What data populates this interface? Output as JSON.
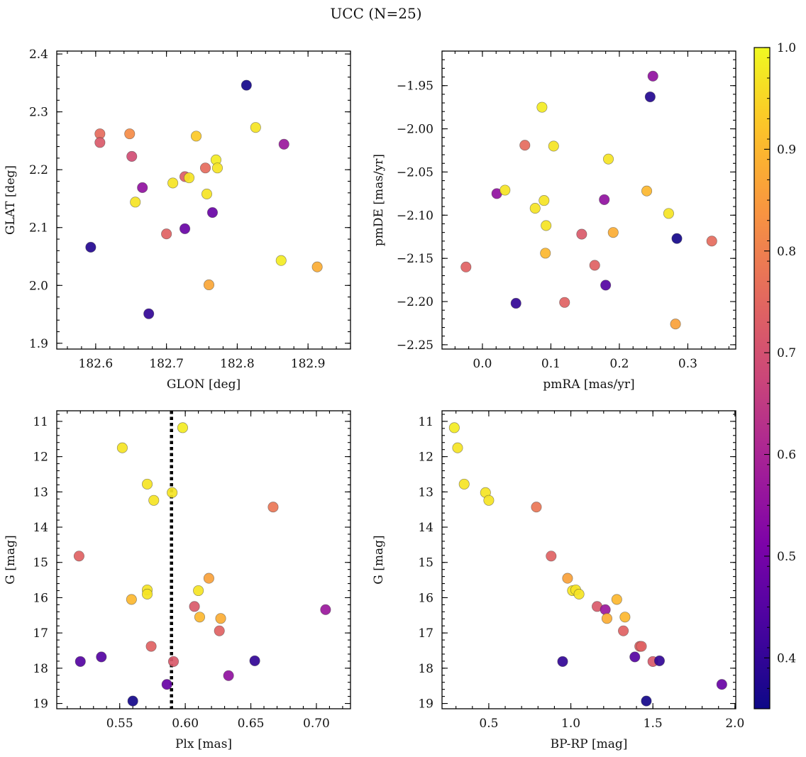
{
  "figure": {
    "title": "UCC (N=25)",
    "colorbar": {
      "min": 0.35,
      "max": 1.0,
      "ticks": [
        0.4,
        0.5,
        0.6,
        0.7,
        0.8,
        0.9,
        1.0
      ],
      "tick_labels": [
        "0.4",
        "0.5",
        "0.6",
        "0.7",
        "0.8",
        "0.9",
        "1.0"
      ],
      "colormap": "plasma"
    }
  },
  "chart_data": [
    {
      "type": "scatter",
      "id": "glon-glat",
      "xlabel": "GLON [deg]",
      "ylabel": "GLAT [deg]",
      "xlim": [
        182.545,
        182.96
      ],
      "ylim": [
        1.89,
        2.405
      ],
      "invert_y": false,
      "xticks": [
        182.6,
        182.7,
        182.8,
        182.9
      ],
      "xtick_labels": [
        "182.6",
        "182.7",
        "182.8",
        "182.9"
      ],
      "yticks": [
        1.9,
        2.0,
        2.1,
        2.2,
        2.3,
        2.4
      ],
      "ytick_labels": [
        "1.9",
        "2.0",
        "2.1",
        "2.2",
        "2.3",
        "2.4"
      ],
      "points": [
        {
          "x": 182.593,
          "y": 2.066,
          "c": 0.38
        },
        {
          "x": 182.606,
          "y": 2.262,
          "c": 0.76
        },
        {
          "x": 182.606,
          "y": 2.247,
          "c": 0.72
        },
        {
          "x": 182.648,
          "y": 2.262,
          "c": 0.82
        },
        {
          "x": 182.651,
          "y": 2.223,
          "c": 0.69
        },
        {
          "x": 182.656,
          "y": 2.144,
          "c": 0.97
        },
        {
          "x": 182.666,
          "y": 2.169,
          "c": 0.55
        },
        {
          "x": 182.675,
          "y": 1.951,
          "c": 0.4
        },
        {
          "x": 182.7,
          "y": 2.089,
          "c": 0.74
        },
        {
          "x": 182.709,
          "y": 2.177,
          "c": 0.97
        },
        {
          "x": 182.726,
          "y": 2.188,
          "c": 0.73
        },
        {
          "x": 182.726,
          "y": 2.098,
          "c": 0.48
        },
        {
          "x": 182.732,
          "y": 2.186,
          "c": 0.97
        },
        {
          "x": 182.742,
          "y": 2.258,
          "c": 0.93
        },
        {
          "x": 182.755,
          "y": 2.203,
          "c": 0.76
        },
        {
          "x": 182.757,
          "y": 2.158,
          "c": 0.97
        },
        {
          "x": 182.76,
          "y": 2.001,
          "c": 0.87
        },
        {
          "x": 182.765,
          "y": 2.126,
          "c": 0.48
        },
        {
          "x": 182.77,
          "y": 2.217,
          "c": 0.98
        },
        {
          "x": 182.772,
          "y": 2.203,
          "c": 0.97
        },
        {
          "x": 182.813,
          "y": 2.346,
          "c": 0.36
        },
        {
          "x": 182.826,
          "y": 2.273,
          "c": 0.97
        },
        {
          "x": 182.862,
          "y": 2.043,
          "c": 0.98
        },
        {
          "x": 182.866,
          "y": 2.244,
          "c": 0.57
        },
        {
          "x": 182.913,
          "y": 2.032,
          "c": 0.88
        }
      ]
    },
    {
      "type": "scatter",
      "id": "pmra-pmde",
      "xlabel": "pmRA [mas/yr]",
      "ylabel": "pmDE [mas/yr]",
      "xlim": [
        -0.059,
        0.37
      ],
      "ylim": [
        -2.255,
        -1.91
      ],
      "invert_y": false,
      "xticks": [
        0.0,
        0.1,
        0.2,
        0.3
      ],
      "xtick_labels": [
        "0.0",
        "0.1",
        "0.2",
        "0.3"
      ],
      "yticks": [
        -2.25,
        -2.2,
        -2.15,
        -2.1,
        -2.05,
        -2.0,
        -1.95
      ],
      "ytick_labels": [
        "−2.25",
        "−2.20",
        "−2.15",
        "−2.10",
        "−2.05",
        "−2.00",
        "−1.95"
      ],
      "points": [
        {
          "x": -0.024,
          "y": -2.16,
          "c": 0.74
        },
        {
          "x": 0.021,
          "y": -2.075,
          "c": 0.55
        },
        {
          "x": 0.033,
          "y": -2.071,
          "c": 0.97
        },
        {
          "x": 0.049,
          "y": -2.202,
          "c": 0.4
        },
        {
          "x": 0.062,
          "y": -2.019,
          "c": 0.76
        },
        {
          "x": 0.077,
          "y": -2.092,
          "c": 0.97
        },
        {
          "x": 0.087,
          "y": -1.975,
          "c": 0.98
        },
        {
          "x": 0.09,
          "y": -2.083,
          "c": 0.97
        },
        {
          "x": 0.093,
          "y": -2.112,
          "c": 0.97
        },
        {
          "x": 0.092,
          "y": -2.144,
          "c": 0.9
        },
        {
          "x": 0.104,
          "y": -2.02,
          "c": 0.97
        },
        {
          "x": 0.12,
          "y": -2.201,
          "c": 0.74
        },
        {
          "x": 0.145,
          "y": -2.122,
          "c": 0.72
        },
        {
          "x": 0.164,
          "y": -2.158,
          "c": 0.74
        },
        {
          "x": 0.178,
          "y": -2.082,
          "c": 0.55
        },
        {
          "x": 0.18,
          "y": -2.181,
          "c": 0.45
        },
        {
          "x": 0.184,
          "y": -2.035,
          "c": 0.97
        },
        {
          "x": 0.191,
          "y": -2.12,
          "c": 0.88
        },
        {
          "x": 0.24,
          "y": -2.072,
          "c": 0.9
        },
        {
          "x": 0.245,
          "y": -1.963,
          "c": 0.38
        },
        {
          "x": 0.249,
          "y": -1.939,
          "c": 0.55
        },
        {
          "x": 0.272,
          "y": -2.098,
          "c": 0.97
        },
        {
          "x": 0.282,
          "y": -2.226,
          "c": 0.86
        },
        {
          "x": 0.284,
          "y": -2.127,
          "c": 0.36
        },
        {
          "x": 0.335,
          "y": -2.13,
          "c": 0.76
        }
      ]
    },
    {
      "type": "scatter",
      "id": "plx-g",
      "xlabel": "Plx [mas]",
      "ylabel": "G [mag]",
      "xlim": [
        0.502,
        0.726
      ],
      "ylim": [
        10.7,
        19.15
      ],
      "invert_y": true,
      "xticks": [
        0.55,
        0.6,
        0.65,
        0.7
      ],
      "xtick_labels": [
        "0.55",
        "0.60",
        "0.65",
        "0.70"
      ],
      "yticks": [
        11,
        12,
        13,
        14,
        15,
        16,
        17,
        18,
        19
      ],
      "ytick_labels": [
        "11",
        "12",
        "13",
        "14",
        "15",
        "16",
        "17",
        "18",
        "19"
      ],
      "vline": {
        "x": 0.5895,
        "style": "dotted",
        "color": "#000000"
      },
      "points": [
        {
          "x": 0.598,
          "y": 11.18,
          "c": 0.98
        },
        {
          "x": 0.552,
          "y": 11.75,
          "c": 0.97
        },
        {
          "x": 0.571,
          "y": 12.78,
          "c": 0.97
        },
        {
          "x": 0.59,
          "y": 13.02,
          "c": 0.97
        },
        {
          "x": 0.576,
          "y": 13.24,
          "c": 0.97
        },
        {
          "x": 0.667,
          "y": 13.43,
          "c": 0.78
        },
        {
          "x": 0.519,
          "y": 14.82,
          "c": 0.74
        },
        {
          "x": 0.618,
          "y": 15.45,
          "c": 0.86
        },
        {
          "x": 0.571,
          "y": 15.78,
          "c": 0.97
        },
        {
          "x": 0.61,
          "y": 15.8,
          "c": 0.97
        },
        {
          "x": 0.571,
          "y": 15.9,
          "c": 0.97
        },
        {
          "x": 0.559,
          "y": 16.05,
          "c": 0.9
        },
        {
          "x": 0.607,
          "y": 16.25,
          "c": 0.72
        },
        {
          "x": 0.707,
          "y": 16.34,
          "c": 0.57
        },
        {
          "x": 0.611,
          "y": 16.55,
          "c": 0.9
        },
        {
          "x": 0.627,
          "y": 16.59,
          "c": 0.88
        },
        {
          "x": 0.626,
          "y": 16.94,
          "c": 0.74
        },
        {
          "x": 0.574,
          "y": 17.38,
          "c": 0.74
        },
        {
          "x": 0.536,
          "y": 17.68,
          "c": 0.45
        },
        {
          "x": 0.52,
          "y": 17.81,
          "c": 0.45
        },
        {
          "x": 0.591,
          "y": 17.81,
          "c": 0.72
        },
        {
          "x": 0.653,
          "y": 17.79,
          "c": 0.4
        },
        {
          "x": 0.633,
          "y": 18.21,
          "c": 0.55
        },
        {
          "x": 0.586,
          "y": 18.46,
          "c": 0.48
        },
        {
          "x": 0.56,
          "y": 18.93,
          "c": 0.36
        }
      ]
    },
    {
      "type": "scatter",
      "id": "bprp-g",
      "xlabel": "BP-RP [mag]",
      "ylabel": "G [mag]",
      "xlim": [
        0.215,
        2.005
      ],
      "ylim": [
        10.7,
        19.15
      ],
      "invert_y": true,
      "xticks": [
        0.5,
        1.0,
        1.5,
        2.0
      ],
      "xtick_labels": [
        "0.5",
        "1.0",
        "1.5",
        "2.0"
      ],
      "yticks": [
        11,
        12,
        13,
        14,
        15,
        16,
        17,
        18,
        19
      ],
      "ytick_labels": [
        "11",
        "12",
        "13",
        "14",
        "15",
        "16",
        "17",
        "18",
        "19"
      ],
      "points": [
        {
          "x": 0.29,
          "y": 11.18,
          "c": 0.98
        },
        {
          "x": 0.31,
          "y": 11.75,
          "c": 0.97
        },
        {
          "x": 0.35,
          "y": 12.78,
          "c": 0.97
        },
        {
          "x": 0.48,
          "y": 13.02,
          "c": 0.97
        },
        {
          "x": 0.5,
          "y": 13.24,
          "c": 0.97
        },
        {
          "x": 0.79,
          "y": 13.43,
          "c": 0.78
        },
        {
          "x": 0.88,
          "y": 14.82,
          "c": 0.74
        },
        {
          "x": 0.98,
          "y": 15.45,
          "c": 0.86
        },
        {
          "x": 1.01,
          "y": 15.8,
          "c": 0.97
        },
        {
          "x": 1.03,
          "y": 15.78,
          "c": 0.97
        },
        {
          "x": 1.05,
          "y": 15.9,
          "c": 0.97
        },
        {
          "x": 1.16,
          "y": 16.25,
          "c": 0.72
        },
        {
          "x": 1.21,
          "y": 16.34,
          "c": 0.57
        },
        {
          "x": 1.22,
          "y": 16.59,
          "c": 0.88
        },
        {
          "x": 1.28,
          "y": 16.05,
          "c": 0.9
        },
        {
          "x": 1.33,
          "y": 16.55,
          "c": 0.9
        },
        {
          "x": 1.32,
          "y": 16.94,
          "c": 0.74
        },
        {
          "x": 1.39,
          "y": 17.68,
          "c": 0.45
        },
        {
          "x": 1.42,
          "y": 17.38,
          "c": 0.74
        },
        {
          "x": 1.5,
          "y": 17.81,
          "c": 0.72
        },
        {
          "x": 1.54,
          "y": 17.79,
          "c": 0.4
        },
        {
          "x": 0.95,
          "y": 17.81,
          "c": 0.4
        },
        {
          "x": 1.46,
          "y": 18.93,
          "c": 0.36
        },
        {
          "x": 1.92,
          "y": 18.46,
          "c": 0.48
        },
        {
          "x": 1.43,
          "y": 17.38,
          "c": 0.74
        }
      ]
    }
  ]
}
